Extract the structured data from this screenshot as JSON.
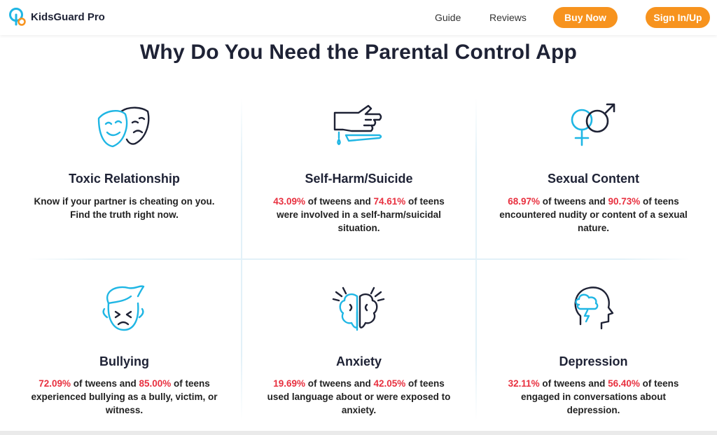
{
  "header": {
    "logo_text": "KidsGuard Pro",
    "nav": [
      "Guide",
      "Reviews"
    ],
    "buy_label": "Buy Now",
    "sign_label": "Sign In/Up"
  },
  "title": "Why Do You Need the Parental Control App",
  "colors": {
    "accent": "#f7931e",
    "highlight": "#e8303f",
    "icon_blue": "#1fb6e4",
    "text": "#1e2235"
  },
  "cards": [
    {
      "icon": "masks-icon",
      "title": "Toxic Relationship",
      "text": "Know if your partner is cheating on you. Find the truth right now."
    },
    {
      "icon": "self-harm-icon",
      "title": "Self-Harm/Suicide",
      "stat1": "43.09%",
      "mid": " of tweens and ",
      "stat2": "74.61%",
      "rest": " of teens were involved in a self-harm/suicidal situation."
    },
    {
      "icon": "gender-symbols-icon",
      "title": "Sexual Content",
      "stat1": "68.97%",
      "mid": " of tweens and ",
      "stat2": "90.73%",
      "rest": " of teens encountered nudity or content of a sexual nature."
    },
    {
      "icon": "bullied-face-icon",
      "title": "Bullying",
      "stat1": "72.09%",
      "mid": " of tweens and ",
      "stat2": "85.00%",
      "rest": " of teens experienced bullying as a bully, victim, or witness."
    },
    {
      "icon": "brain-icon",
      "title": "Anxiety",
      "stat1": "19.69%",
      "mid": " of tweens and ",
      "stat2": "42.05%",
      "rest": " of teens used language about or were exposed to anxiety."
    },
    {
      "icon": "head-storm-icon",
      "title": "Depression",
      "stat1": "32.11%",
      "mid": " of tweens and ",
      "stat2": "56.40%",
      "rest": " of teens engaged in conversations about depression."
    }
  ]
}
